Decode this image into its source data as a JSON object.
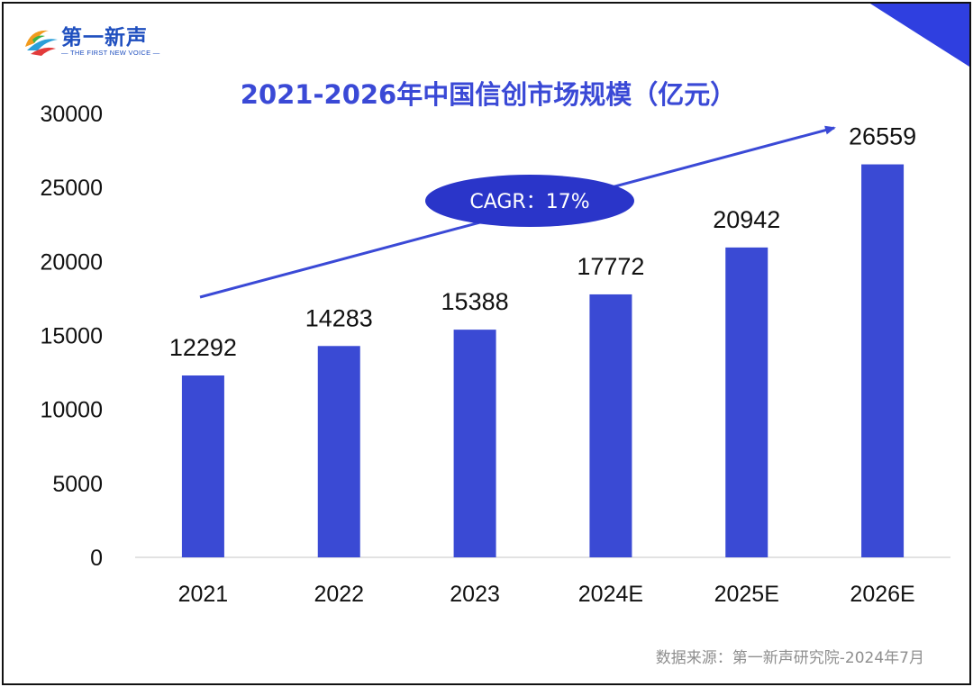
{
  "logo": {
    "name_cn": "第一新声",
    "tagline": "— THE FIRST NEW VOICE —"
  },
  "colors": {
    "bar": "#3a4ad4",
    "title": "#3a49d6",
    "accent_corner": "#2f3fe0",
    "cagr_ellipse": "#2a35c9",
    "source_text": "#8f8f8f"
  },
  "source": "数据来源：第一新声研究院-2024年7月",
  "chart_data": {
    "type": "bar",
    "title": "2021-2026年中国信创市场规模（亿元）",
    "categories": [
      "2021",
      "2022",
      "2023",
      "2024E",
      "2025E",
      "2026E"
    ],
    "values": [
      12292,
      14283,
      15388,
      17772,
      20942,
      26559
    ],
    "data_labels": [
      "12292",
      "14283",
      "15388",
      "17772",
      "20942",
      "26559"
    ],
    "ylim": [
      0,
      30000
    ],
    "yticks": [
      0,
      5000,
      10000,
      15000,
      20000,
      25000,
      30000
    ],
    "ytick_labels": [
      "0",
      "5000",
      "10000",
      "15000",
      "20000",
      "25000",
      "30000"
    ],
    "grid": false,
    "annotation": {
      "text": "CAGR：17%",
      "kind": "trend-arrow",
      "from_category": "2021",
      "to_category": "2026E"
    }
  }
}
